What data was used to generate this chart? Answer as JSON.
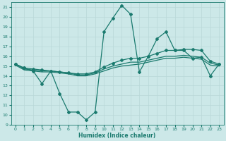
{
  "title": "",
  "xlabel": "Humidex (Indice chaleur)",
  "ylabel": "",
  "bg_color": "#cce8e8",
  "line_color": "#1a7a6e",
  "grid_color": "#b8d8d8",
  "xlim": [
    -0.5,
    23.5
  ],
  "ylim": [
    9,
    21.5
  ],
  "yticks": [
    9,
    10,
    11,
    12,
    13,
    14,
    15,
    16,
    17,
    18,
    19,
    20,
    21
  ],
  "xticks": [
    0,
    1,
    2,
    3,
    4,
    5,
    6,
    7,
    8,
    9,
    10,
    11,
    12,
    13,
    14,
    15,
    16,
    17,
    18,
    19,
    20,
    21,
    22,
    23
  ],
  "lines": [
    {
      "x": [
        0,
        1,
        2,
        3,
        4,
        5,
        6,
        7,
        8,
        9,
        10,
        11,
        12,
        13,
        14,
        15,
        16,
        17,
        18,
        19,
        20,
        21,
        22,
        23
      ],
      "y": [
        15.2,
        14.8,
        14.5,
        13.2,
        14.5,
        12.2,
        10.3,
        10.3,
        9.5,
        10.3,
        18.5,
        19.9,
        21.2,
        20.3,
        14.4,
        16.0,
        17.8,
        18.5,
        16.6,
        16.6,
        15.8,
        15.9,
        14.0,
        15.2
      ],
      "marker": "P",
      "markersize": 2.5,
      "linewidth": 0.9
    },
    {
      "x": [
        0,
        1,
        2,
        3,
        4,
        5,
        6,
        7,
        8,
        9,
        10,
        11,
        12,
        13,
        14,
        15,
        16,
        17,
        18,
        19,
        20,
        21,
        22,
        23
      ],
      "y": [
        15.2,
        14.8,
        14.7,
        14.6,
        14.5,
        14.4,
        14.3,
        14.2,
        14.2,
        14.4,
        14.9,
        15.3,
        15.6,
        15.8,
        15.8,
        16.0,
        16.3,
        16.6,
        16.6,
        16.7,
        16.7,
        16.6,
        15.5,
        15.2
      ],
      "marker": "P",
      "markersize": 2.5,
      "linewidth": 0.9
    },
    {
      "x": [
        0,
        1,
        2,
        3,
        4,
        5,
        6,
        7,
        8,
        9,
        10,
        11,
        12,
        13,
        14,
        15,
        16,
        17,
        18,
        19,
        20,
        21,
        22,
        23
      ],
      "y": [
        15.2,
        14.7,
        14.6,
        14.5,
        14.5,
        14.4,
        14.3,
        14.1,
        14.1,
        14.3,
        14.7,
        15.0,
        15.2,
        15.4,
        15.4,
        15.6,
        15.8,
        16.0,
        16.0,
        16.1,
        16.0,
        15.9,
        15.3,
        15.1
      ],
      "marker": null,
      "markersize": 0,
      "linewidth": 0.9
    },
    {
      "x": [
        0,
        1,
        2,
        3,
        4,
        5,
        6,
        7,
        8,
        9,
        10,
        11,
        12,
        13,
        14,
        15,
        16,
        17,
        18,
        19,
        20,
        21,
        22,
        23
      ],
      "y": [
        15.1,
        14.6,
        14.5,
        14.4,
        14.4,
        14.3,
        14.2,
        14.0,
        14.0,
        14.2,
        14.5,
        14.8,
        15.0,
        15.1,
        15.2,
        15.4,
        15.6,
        15.8,
        15.8,
        15.9,
        15.8,
        15.7,
        15.1,
        15.0
      ],
      "marker": null,
      "markersize": 0,
      "linewidth": 0.9
    }
  ]
}
